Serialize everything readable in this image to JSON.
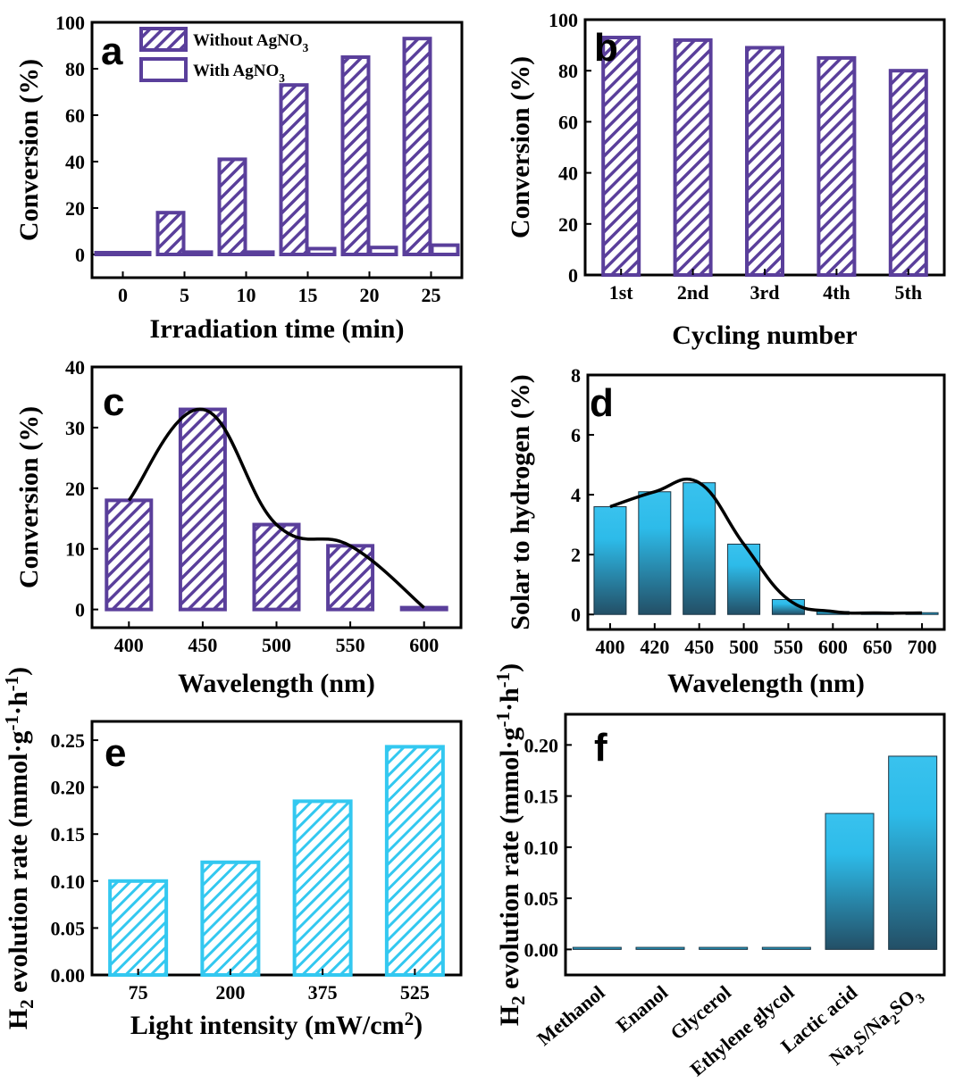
{
  "colors": {
    "purple": "#5a3f9b",
    "cyan": "#33c8f0",
    "cyan_dark": "#2b6580",
    "curve": "#000000"
  },
  "charts": [
    {
      "id": "a",
      "panel_label": "a",
      "chart_data": {
        "type": "bar",
        "categories": [
          "0",
          "5",
          "10",
          "15",
          "20",
          "25"
        ],
        "series": [
          {
            "name": "Without AgNO3",
            "values": [
              0,
              18,
              41,
              73,
              85,
              93
            ],
            "style": "hatched-purple"
          },
          {
            "name": "With AgNO3",
            "values": [
              0,
              1,
              1,
              2.5,
              3,
              4
            ],
            "style": "hollow-purple"
          }
        ],
        "xlabel": "Irradiation time (min)",
        "ylabel": "Conversion (%)",
        "ylim": [
          -10,
          100
        ],
        "yticks": [
          0,
          20,
          40,
          60,
          80,
          100
        ],
        "legend": "top-center"
      }
    },
    {
      "id": "b",
      "panel_label": "b",
      "chart_data": {
        "type": "bar",
        "categories": [
          "1st",
          "2nd",
          "3rd",
          "4th",
          "5th"
        ],
        "series": [
          {
            "values": [
              93,
              92,
              89,
              85,
              80
            ],
            "style": "hatched-purple"
          }
        ],
        "xlabel": "Cycling number",
        "ylabel": "Conversion (%)",
        "ylim": [
          0,
          100
        ],
        "yticks": [
          0,
          20,
          40,
          60,
          80,
          100
        ]
      }
    },
    {
      "id": "c",
      "panel_label": "c",
      "chart_data": {
        "type": "bar",
        "categories": [
          "400",
          "450",
          "500",
          "550",
          "600"
        ],
        "series": [
          {
            "values": [
              18,
              33,
              14,
              10.5,
              0.3
            ],
            "style": "hatched-purple"
          }
        ],
        "curve": [
          18,
          33,
          14,
          10.5,
          0.3
        ],
        "xlabel": "Wavelength (nm)",
        "ylabel": "Conversion (%)",
        "ylim": [
          -3,
          40
        ],
        "yticks": [
          0,
          10,
          20,
          30,
          40
        ]
      }
    },
    {
      "id": "d",
      "panel_label": "d",
      "chart_data": {
        "type": "bar",
        "categories": [
          "400",
          "420",
          "450",
          "500",
          "550",
          "600",
          "650",
          "700"
        ],
        "series": [
          {
            "values": [
              3.6,
              4.1,
              4.4,
              2.35,
              0.5,
              0.1,
              0.05,
              0.05
            ],
            "style": "gradient-cyan"
          }
        ],
        "curve": [
          3.6,
          4.1,
          4.4,
          2.35,
          0.5,
          0.1,
          0.05,
          0.05
        ],
        "xlabel": "Wavelength (nm)",
        "ylabel": "Solar to hydrogen (%)",
        "ylim": [
          -0.5,
          8
        ],
        "yticks": [
          0,
          2,
          4,
          6,
          8
        ]
      }
    },
    {
      "id": "e",
      "panel_label": "e",
      "chart_data": {
        "type": "bar",
        "categories": [
          "75",
          "200",
          "375",
          "525"
        ],
        "series": [
          {
            "values": [
              0.1,
              0.12,
              0.185,
              0.243
            ],
            "style": "hatched-cyan"
          }
        ],
        "xlabel": "Light intensity (mW/cm2)",
        "ylabel": "H2 evolution rate (mmol·g-1·h-1)",
        "ylim": [
          0,
          0.27
        ],
        "yticks": [
          "0.00",
          "0.05",
          "0.10",
          "0.15",
          "0.20",
          "0.25"
        ]
      }
    },
    {
      "id": "f",
      "panel_label": "f",
      "chart_data": {
        "type": "bar",
        "categories": [
          "Methanol",
          "Enanol",
          "Glycerol",
          "Ethylene glycol",
          "Lactic acid",
          "Na2S/Na2SO3"
        ],
        "series": [
          {
            "values": [
              0.002,
              0.002,
              0.002,
              0.002,
              0.133,
              0.189
            ],
            "style": "gradient-cyan"
          }
        ],
        "xlabel": "",
        "ylabel": "H2 evolution rate (mmol·g-1·h-1)",
        "ylim": [
          -0.025,
          0.23
        ],
        "yticks": [
          "0.00",
          "0.05",
          "0.10",
          "0.15",
          "0.20"
        ]
      }
    }
  ]
}
